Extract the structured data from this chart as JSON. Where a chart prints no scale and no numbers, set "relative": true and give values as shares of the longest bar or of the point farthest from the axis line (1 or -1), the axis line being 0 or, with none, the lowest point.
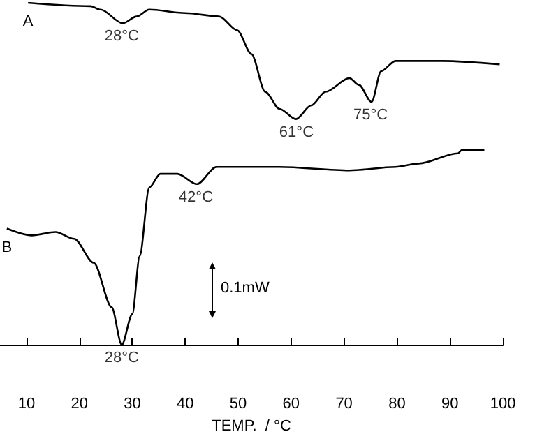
{
  "chart_data": {
    "type": "line",
    "relative": true,
    "xlabel": "TEMP.  / °C",
    "xlim": [
      5,
      100
    ],
    "xticks": [
      10,
      20,
      30,
      40,
      50,
      60,
      70,
      80,
      90,
      100
    ],
    "grid": false,
    "legend": false,
    "color": "#000000",
    "series": [
      {
        "name": "A",
        "x": [
          10.3,
          22.1,
          24,
          28.2,
          30.8,
          33.2,
          40,
          46.4,
          49.8,
          52.5,
          55.1,
          57.8,
          60.9,
          63.8,
          66.5,
          71,
          72.8,
          75.2,
          77,
          79.7,
          88.6,
          99.4
        ],
        "values": [
          1.0,
          0.99,
          0.98,
          0.94,
          0.96,
          0.98,
          0.97,
          0.96,
          0.92,
          0.85,
          0.74,
          0.69,
          0.66,
          0.7,
          0.74,
          0.78,
          0.76,
          0.71,
          0.8,
          0.83,
          0.83,
          0.82
        ]
      },
      {
        "name": "B",
        "x": [
          6.3,
          11,
          15.5,
          19,
          22.7,
          26.1,
          28,
          30,
          31.4,
          33.2,
          35.3,
          38.5,
          42.2,
          45.9,
          57.8,
          71,
          79.7,
          84.1,
          91.5,
          92.3,
          96.5
        ],
        "values": [
          0.34,
          0.32,
          0.33,
          0.31,
          0.24,
          0.11,
          0.0,
          0.09,
          0.26,
          0.46,
          0.5,
          0.5,
          0.47,
          0.52,
          0.52,
          0.51,
          0.52,
          0.53,
          0.56,
          0.57,
          0.57
        ]
      }
    ],
    "annotations": [
      {
        "text": "28°C",
        "x": 28,
        "y": 0.94
      },
      {
        "text": "61°C",
        "x": 61,
        "y": 0.66
      },
      {
        "text": "75°C",
        "x": 75,
        "y": 0.71
      },
      {
        "text": "42°C",
        "x": 42,
        "y": 0.47
      },
      {
        "text": "28°C",
        "x": 28,
        "y": 0.0
      },
      "0.1mW"
    ]
  }
}
